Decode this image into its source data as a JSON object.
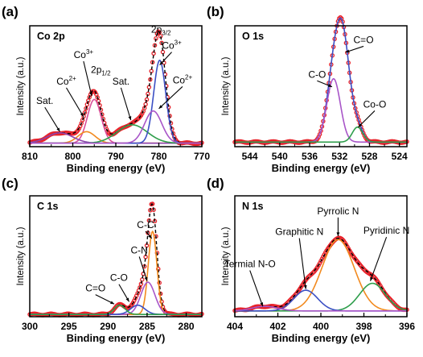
{
  "chart_data": [
    {
      "type": "line",
      "panel_label": "(a)",
      "title": "Co 2p",
      "xlabel": "Binding energy (eV)",
      "ylabel": "Intensity (a.u.)",
      "xlim": [
        810,
        770
      ],
      "x_reversed": true,
      "xticks": [
        810,
        800,
        790,
        780,
        770
      ],
      "ylim": [
        0,
        1.05
      ],
      "series": [
        {
          "color": "#e8232b",
          "style": "markers",
          "peaks": [
            {
              "c": 795.0,
              "a": 0.38,
              "w": 1.6
            },
            {
              "c": 779.8,
              "a": 0.72,
              "w": 1.4
            },
            {
              "c": 781.3,
              "a": 0.28,
              "w": 2.0
            },
            {
              "c": 796.8,
              "a": 0.1,
              "w": 2.0
            },
            {
              "c": 786.2,
              "a": 0.16,
              "w": 3.5
            },
            {
              "c": 803.0,
              "a": 0.09,
              "w": 3.0
            }
          ],
          "base": 0.03
        },
        {
          "color": "#000000",
          "style": "line",
          "peaks": [
            {
              "c": 795.0,
              "a": 0.38,
              "w": 1.6
            },
            {
              "c": 779.8,
              "a": 0.72,
              "w": 1.4
            },
            {
              "c": 781.3,
              "a": 0.28,
              "w": 2.0
            },
            {
              "c": 796.8,
              "a": 0.1,
              "w": 2.0
            },
            {
              "c": 786.2,
              "a": 0.16,
              "w": 3.5
            },
            {
              "c": 803.0,
              "a": 0.09,
              "w": 3.0
            }
          ],
          "base": 0.03
        },
        {
          "color": "#d94f9a",
          "style": "line",
          "peaks": [
            {
              "c": 795.0,
              "a": 0.38,
              "w": 1.6
            }
          ],
          "base": 0.03
        },
        {
          "color": "#f28a1f",
          "style": "line",
          "peaks": [
            {
              "c": 796.8,
              "a": 0.1,
              "w": 2.0
            }
          ],
          "base": 0.03
        },
        {
          "color": "#8e44ad",
          "style": "line",
          "peaks": [
            {
              "c": 803.0,
              "a": 0.09,
              "w": 3.0
            }
          ],
          "base": 0.03
        },
        {
          "color": "#2e9e4b",
          "style": "line",
          "peaks": [
            {
              "c": 786.2,
              "a": 0.16,
              "w": 3.5
            }
          ],
          "base": 0.03
        },
        {
          "color": "#3b4fc4",
          "style": "line",
          "peaks": [
            {
              "c": 779.8,
              "a": 0.72,
              "w": 1.4
            }
          ],
          "base": 0.03
        },
        {
          "color": "#a855c8",
          "style": "line",
          "peaks": [
            {
              "c": 781.3,
              "a": 0.28,
              "w": 2.0
            }
          ],
          "base": 0.03
        }
      ],
      "annotations": [
        {
          "text": "Sat.",
          "x": 806.5,
          "y": 0.37,
          "arrow_to": [
            803.0,
            0.13
          ]
        },
        {
          "text": "Co",
          "sup": "2+",
          "x": 801.5,
          "y": 0.54,
          "arrow_to": [
            797.5,
            0.26
          ]
        },
        {
          "text": "Co",
          "sup": "3+",
          "x": 797.5,
          "y": 0.77,
          "arrow_to": [
            795.6,
            0.44
          ]
        },
        {
          "text": "2p",
          "sub": "1/2",
          "x": 793.5,
          "y": 0.64
        },
        {
          "text": "Sat.",
          "x": 788.8,
          "y": 0.54,
          "arrow_to": [
            786.5,
            0.23
          ]
        },
        {
          "text": "2p",
          "sub": "3/2",
          "x": 779.5,
          "y": 0.99
        },
        {
          "text": "Co",
          "sup": "3+",
          "x": 777.0,
          "y": 0.85,
          "arrow_to": [
            779.8,
            0.71
          ]
        },
        {
          "text": "Co",
          "sup": "2+",
          "x": 774.5,
          "y": 0.55,
          "arrow_to": [
            780.0,
            0.33
          ]
        }
      ]
    },
    {
      "type": "line",
      "panel_label": "(b)",
      "title": "O 1s",
      "xlabel": "Binding energy (eV)",
      "ylabel": "Intensity (a.u.)",
      "xlim": [
        546,
        523
      ],
      "x_reversed": true,
      "xticks": [
        544,
        540,
        536,
        532,
        528,
        524
      ],
      "ylim": [
        0,
        1.05
      ],
      "series": [
        {
          "color": "#e8232b",
          "style": "markers",
          "peaks": [
            {
              "c": 531.5,
              "a": 0.82,
              "w": 0.9
            },
            {
              "c": 532.8,
              "a": 0.55,
              "w": 0.9
            },
            {
              "c": 529.6,
              "a": 0.13,
              "w": 0.7
            }
          ],
          "base": 0.04
        },
        {
          "color": "#3b4fc4",
          "style": "line",
          "peaks": [
            {
              "c": 531.5,
              "a": 0.82,
              "w": 0.9
            },
            {
              "c": 532.8,
              "a": 0.55,
              "w": 0.9
            },
            {
              "c": 529.6,
              "a": 0.13,
              "w": 0.7
            }
          ],
          "base": 0.04
        },
        {
          "color": "#a855c8",
          "style": "line",
          "peaks": [
            {
              "c": 532.8,
              "a": 0.55,
              "w": 0.9
            }
          ],
          "base": 0.04
        },
        {
          "color": "#2e9e4b",
          "style": "line",
          "peaks": [
            {
              "c": 529.6,
              "a": 0.13,
              "w": 0.7
            }
          ],
          "base": 0.04
        }
      ],
      "annotations": [
        {
          "text": "C-O",
          "x": 535.0,
          "y": 0.6,
          "arrow_to": [
            533.0,
            0.52
          ]
        },
        {
          "text": "C=O",
          "x": 528.8,
          "y": 0.9,
          "arrow_to": [
            531.2,
            0.82
          ]
        },
        {
          "text": "Co-O",
          "x": 527.3,
          "y": 0.34,
          "arrow_to": [
            529.5,
            0.17
          ]
        }
      ]
    },
    {
      "type": "line",
      "panel_label": "(c)",
      "title": "C 1s",
      "xlabel": "Binding energy (eV)",
      "ylabel": "Intensity (a.u.)",
      "xlim": [
        300,
        278
      ],
      "x_reversed": true,
      "xticks": [
        300,
        295,
        290,
        285,
        280
      ],
      "ylim": [
        0,
        1.05
      ],
      "series": [
        {
          "color": "#e8232b",
          "style": "markers",
          "peaks": [
            {
              "c": 284.3,
              "a": 0.72,
              "w": 0.55
            },
            {
              "c": 284.9,
              "a": 0.28,
              "w": 0.9
            },
            {
              "c": 286.2,
              "a": 0.08,
              "w": 0.9
            },
            {
              "c": 288.5,
              "a": 0.08,
              "w": 0.7
            }
          ],
          "base": 0.02
        },
        {
          "color": "#000000",
          "style": "line",
          "peaks": [
            {
              "c": 284.3,
              "a": 0.72,
              "w": 0.55
            },
            {
              "c": 284.9,
              "a": 0.28,
              "w": 0.9
            },
            {
              "c": 286.2,
              "a": 0.08,
              "w": 0.9
            },
            {
              "c": 288.5,
              "a": 0.08,
              "w": 0.7
            }
          ],
          "base": 0.02
        },
        {
          "color": "#f28a1f",
          "style": "line",
          "peaks": [
            {
              "c": 284.3,
              "a": 0.72,
              "w": 0.55
            }
          ],
          "base": 0.02
        },
        {
          "color": "#a855c8",
          "style": "line",
          "peaks": [
            {
              "c": 284.9,
              "a": 0.28,
              "w": 0.9
            }
          ],
          "base": 0.02
        },
        {
          "color": "#3b4fc4",
          "style": "line",
          "peaks": [
            {
              "c": 286.2,
              "a": 0.08,
              "w": 0.9
            }
          ],
          "base": 0.02
        },
        {
          "color": "#2e9e4b",
          "style": "line",
          "peaks": [
            {
              "c": 288.5,
              "a": 0.08,
              "w": 0.7
            }
          ],
          "base": 0.02
        }
      ],
      "annotations": [
        {
          "text": "C-C",
          "x": 285.2,
          "y": 0.77,
          "arrow_to": [
            284.4,
            0.68
          ]
        },
        {
          "text": "C-N",
          "x": 286.0,
          "y": 0.55,
          "arrow_to": [
            285.0,
            0.31
          ]
        },
        {
          "text": "C-O",
          "x": 288.6,
          "y": 0.31,
          "arrow_to": [
            287.3,
            0.13
          ]
        },
        {
          "text": "C=O",
          "x": 291.6,
          "y": 0.22,
          "arrow_to": [
            289.2,
            0.11
          ]
        }
      ]
    },
    {
      "type": "line",
      "panel_label": "(d)",
      "title": "N 1s",
      "xlabel": "Binding energy (eV)",
      "ylabel": "Intensity (a.u.)",
      "xlim": [
        404,
        396
      ],
      "x_reversed": true,
      "xticks": [
        404,
        402,
        400,
        398,
        396
      ],
      "ylim": [
        0,
        1.05
      ],
      "series": [
        {
          "color": "#e8232b",
          "style": "markers",
          "peaks": [
            {
              "c": 399.2,
              "a": 0.62,
              "w": 0.75
            },
            {
              "c": 397.6,
              "a": 0.24,
              "w": 0.6
            },
            {
              "c": 400.7,
              "a": 0.18,
              "w": 0.55
            },
            {
              "c": 402.6,
              "a": 0.04,
              "w": 0.6
            }
          ],
          "base": 0.05
        },
        {
          "color": "#000000",
          "style": "line",
          "peaks": [
            {
              "c": 399.2,
              "a": 0.62,
              "w": 0.75
            },
            {
              "c": 397.6,
              "a": 0.24,
              "w": 0.6
            },
            {
              "c": 400.7,
              "a": 0.18,
              "w": 0.55
            },
            {
              "c": 402.6,
              "a": 0.04,
              "w": 0.6
            }
          ],
          "base": 0.05
        },
        {
          "color": "#f28a1f",
          "style": "line",
          "peaks": [
            {
              "c": 399.2,
              "a": 0.62,
              "w": 0.75
            }
          ],
          "base": 0.05
        },
        {
          "color": "#2e9e4b",
          "style": "line",
          "peaks": [
            {
              "c": 397.6,
              "a": 0.24,
              "w": 0.6
            }
          ],
          "base": 0.05
        },
        {
          "color": "#3b4fc4",
          "style": "line",
          "peaks": [
            {
              "c": 400.7,
              "a": 0.18,
              "w": 0.55
            }
          ],
          "base": 0.05
        },
        {
          "color": "#a855c8",
          "style": "line",
          "peaks": [
            {
              "c": 402.6,
              "a": 0.04,
              "w": 0.6
            }
          ],
          "base": 0.05
        }
      ],
      "annotations": [
        {
          "text": "Pyrrolic N",
          "x": 399.2,
          "y": 0.89,
          "arrow_to": [
            399.2,
            0.7
          ]
        },
        {
          "text": "Graphitic N",
          "x": 401.0,
          "y": 0.71,
          "arrow_to": [
            400.7,
            0.24
          ]
        },
        {
          "text": "Pyridinic N",
          "x": 396.95,
          "y": 0.72,
          "arrow_to": [
            397.7,
            0.31
          ]
        },
        {
          "text": "Termial N-O",
          "x": 403.3,
          "y": 0.43,
          "arrow_to": [
            402.7,
            0.09
          ]
        }
      ]
    }
  ]
}
